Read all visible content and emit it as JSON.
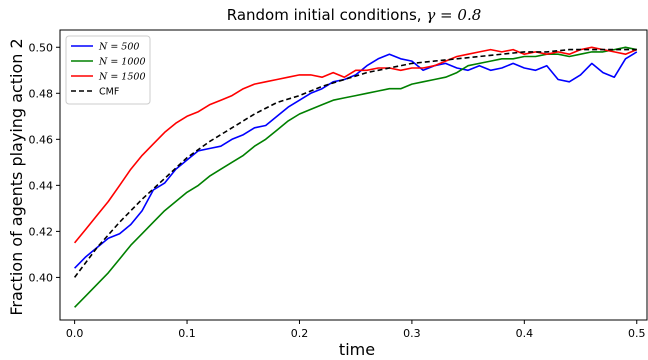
{
  "chart_data": {
    "type": "line",
    "title": "Random initial conditions, γ = 0.8",
    "title_prefix": "Random initial conditions, ",
    "title_math": "γ = 0.8",
    "xlabel": "time",
    "ylabel": "Fraction of agents playing action 2",
    "xlim": [
      -0.013,
      0.51
    ],
    "ylim": [
      0.3815,
      0.5075
    ],
    "xticks": [
      0.0,
      0.1,
      0.2,
      0.3,
      0.4,
      0.5
    ],
    "xtick_labels": [
      "0.0",
      "0.1",
      "0.2",
      "0.3",
      "0.4",
      "0.5"
    ],
    "yticks": [
      0.4,
      0.42,
      0.44,
      0.46,
      0.48,
      0.5
    ],
    "ytick_labels": [
      "0.40",
      "0.42",
      "0.44",
      "0.46",
      "0.48",
      "0.50"
    ],
    "grid": false,
    "legend_position": "top-left",
    "series": [
      {
        "name": "N = 500",
        "color": "#0000ff",
        "style": "solid",
        "x": [
          0,
          0.01,
          0.02,
          0.03,
          0.04,
          0.05,
          0.06,
          0.07,
          0.08,
          0.09,
          0.1,
          0.11,
          0.12,
          0.13,
          0.14,
          0.15,
          0.16,
          0.17,
          0.18,
          0.19,
          0.2,
          0.21,
          0.22,
          0.23,
          0.24,
          0.25,
          0.26,
          0.27,
          0.28,
          0.29,
          0.3,
          0.31,
          0.32,
          0.33,
          0.34,
          0.35,
          0.36,
          0.37,
          0.38,
          0.39,
          0.4,
          0.41,
          0.42,
          0.43,
          0.44,
          0.45,
          0.46,
          0.47,
          0.48,
          0.49,
          0.5
        ],
        "y": [
          0.404,
          0.409,
          0.413,
          0.417,
          0.419,
          0.423,
          0.429,
          0.438,
          0.441,
          0.447,
          0.451,
          0.455,
          0.456,
          0.457,
          0.46,
          0.462,
          0.465,
          0.466,
          0.47,
          0.474,
          0.477,
          0.48,
          0.482,
          0.485,
          0.486,
          0.488,
          0.492,
          0.495,
          0.497,
          0.495,
          0.494,
          0.49,
          0.492,
          0.493,
          0.491,
          0.49,
          0.492,
          0.49,
          0.491,
          0.493,
          0.491,
          0.49,
          0.492,
          0.486,
          0.485,
          0.488,
          0.493,
          0.489,
          0.487,
          0.495,
          0.498
        ]
      },
      {
        "name": "N = 1000",
        "color": "#008000",
        "style": "solid",
        "x": [
          0,
          0.01,
          0.02,
          0.03,
          0.04,
          0.05,
          0.06,
          0.07,
          0.08,
          0.09,
          0.1,
          0.11,
          0.12,
          0.13,
          0.14,
          0.15,
          0.16,
          0.17,
          0.18,
          0.19,
          0.2,
          0.21,
          0.22,
          0.23,
          0.24,
          0.25,
          0.26,
          0.27,
          0.28,
          0.29,
          0.3,
          0.31,
          0.32,
          0.33,
          0.34,
          0.35,
          0.36,
          0.37,
          0.38,
          0.39,
          0.4,
          0.41,
          0.42,
          0.43,
          0.44,
          0.45,
          0.46,
          0.47,
          0.48,
          0.49,
          0.5
        ],
        "y": [
          0.387,
          0.392,
          0.397,
          0.402,
          0.408,
          0.414,
          0.419,
          0.424,
          0.429,
          0.433,
          0.437,
          0.44,
          0.444,
          0.447,
          0.45,
          0.453,
          0.457,
          0.46,
          0.464,
          0.468,
          0.471,
          0.473,
          0.475,
          0.477,
          0.478,
          0.479,
          0.48,
          0.481,
          0.482,
          0.482,
          0.484,
          0.485,
          0.486,
          0.487,
          0.489,
          0.492,
          0.493,
          0.494,
          0.495,
          0.495,
          0.496,
          0.496,
          0.497,
          0.497,
          0.496,
          0.497,
          0.498,
          0.498,
          0.499,
          0.5,
          0.499
        ]
      },
      {
        "name": "N = 1500",
        "color": "#ff0000",
        "style": "solid",
        "x": [
          0,
          0.01,
          0.02,
          0.03,
          0.04,
          0.05,
          0.06,
          0.07,
          0.08,
          0.09,
          0.1,
          0.11,
          0.12,
          0.13,
          0.14,
          0.15,
          0.16,
          0.17,
          0.18,
          0.19,
          0.2,
          0.21,
          0.22,
          0.23,
          0.24,
          0.25,
          0.26,
          0.27,
          0.28,
          0.29,
          0.3,
          0.31,
          0.32,
          0.33,
          0.34,
          0.35,
          0.36,
          0.37,
          0.38,
          0.39,
          0.4,
          0.41,
          0.42,
          0.43,
          0.44,
          0.45,
          0.46,
          0.47,
          0.48,
          0.49,
          0.5
        ],
        "y": [
          0.415,
          0.421,
          0.427,
          0.433,
          0.44,
          0.447,
          0.453,
          0.458,
          0.463,
          0.467,
          0.47,
          0.472,
          0.475,
          0.477,
          0.479,
          0.482,
          0.484,
          0.485,
          0.486,
          0.487,
          0.488,
          0.488,
          0.487,
          0.489,
          0.487,
          0.49,
          0.49,
          0.491,
          0.491,
          0.49,
          0.491,
          0.491,
          0.492,
          0.494,
          0.496,
          0.497,
          0.498,
          0.499,
          0.498,
          0.499,
          0.497,
          0.498,
          0.497,
          0.498,
          0.497,
          0.499,
          0.5,
          0.499,
          0.498,
          0.497,
          0.499
        ]
      },
      {
        "name": "CMF",
        "color": "#000000",
        "style": "dashed",
        "x": [
          0,
          0.02,
          0.04,
          0.06,
          0.08,
          0.1,
          0.12,
          0.14,
          0.16,
          0.18,
          0.2,
          0.22,
          0.24,
          0.26,
          0.28,
          0.3,
          0.32,
          0.34,
          0.36,
          0.38,
          0.4,
          0.42,
          0.44,
          0.46,
          0.48,
          0.5
        ],
        "y": [
          0.4,
          0.413,
          0.424,
          0.434,
          0.443,
          0.452,
          0.459,
          0.465,
          0.471,
          0.476,
          0.479,
          0.483,
          0.486,
          0.489,
          0.491,
          0.493,
          0.494,
          0.495,
          0.496,
          0.497,
          0.498,
          0.498,
          0.499,
          0.499,
          0.499,
          0.499
        ]
      }
    ]
  }
}
